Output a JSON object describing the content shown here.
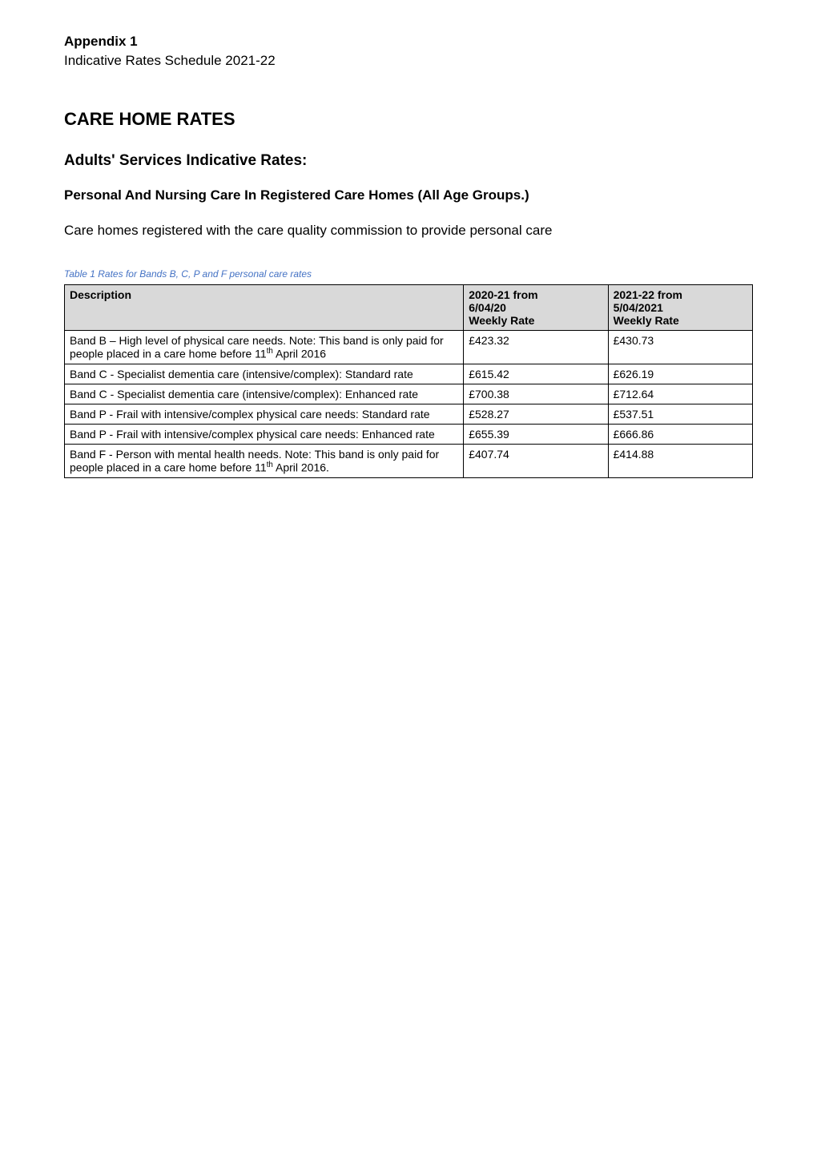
{
  "header": {
    "appendix_title": "Appendix 1",
    "appendix_subtitle": "Indicative Rates Schedule 2021-22"
  },
  "main_heading": "CARE HOME RATES",
  "sub_heading": "Adults' Services Indicative Rates:",
  "sub_sub_heading": "Personal And Nursing Care In Registered Care Homes (All Age Groups.)",
  "body_text": "Care homes registered with the care quality commission to provide personal care",
  "table_caption": "Table 1 Rates for Bands B, C, P and F personal care rates",
  "table": {
    "headers": {
      "description": "Description",
      "col1_line1": "2020-21 from",
      "col1_line2": "6/04/20",
      "col1_line3": "Weekly Rate",
      "col2_line1": "2021-22 from",
      "col2_line2": "5/04/2021",
      "col2_line3": "Weekly Rate"
    },
    "rows": [
      {
        "description": "Band B – High level of physical care needs. Note: This band is only paid for people placed in a care home before 11th April 2016",
        "rate_2020": "£423.32",
        "rate_2021": "£430.73"
      },
      {
        "description": "Band C - Specialist dementia care (intensive/complex): Standard rate",
        "rate_2020": "£615.42",
        "rate_2021": "£626.19"
      },
      {
        "description": "Band C - Specialist dementia care (intensive/complex): Enhanced rate",
        "rate_2020": "£700.38",
        "rate_2021": "£712.64"
      },
      {
        "description": "Band P - Frail with intensive/complex physical care needs: Standard rate",
        "rate_2020": "£528.27",
        "rate_2021": "£537.51"
      },
      {
        "description": "Band P - Frail with intensive/complex physical care needs: Enhanced rate",
        "rate_2020": "£655.39",
        "rate_2021": "£666.86"
      },
      {
        "description": "Band F - Person with mental health needs. Note: This band is only paid for people placed in a care home before 11th April 2016.",
        "rate_2020": "£407.74",
        "rate_2021": "£414.88"
      }
    ]
  },
  "styling": {
    "background_color": "#ffffff",
    "text_color": "#000000",
    "table_header_bg": "#d9d9d9",
    "table_border_color": "#000000",
    "caption_color": "#4472c4",
    "body_font_family": "Verdana",
    "heading_font_size_pt": 16,
    "subheading_font_size_pt": 14,
    "body_font_size_pt": 12,
    "table_font_size_pt": 10,
    "caption_font_size_pt": 9
  }
}
